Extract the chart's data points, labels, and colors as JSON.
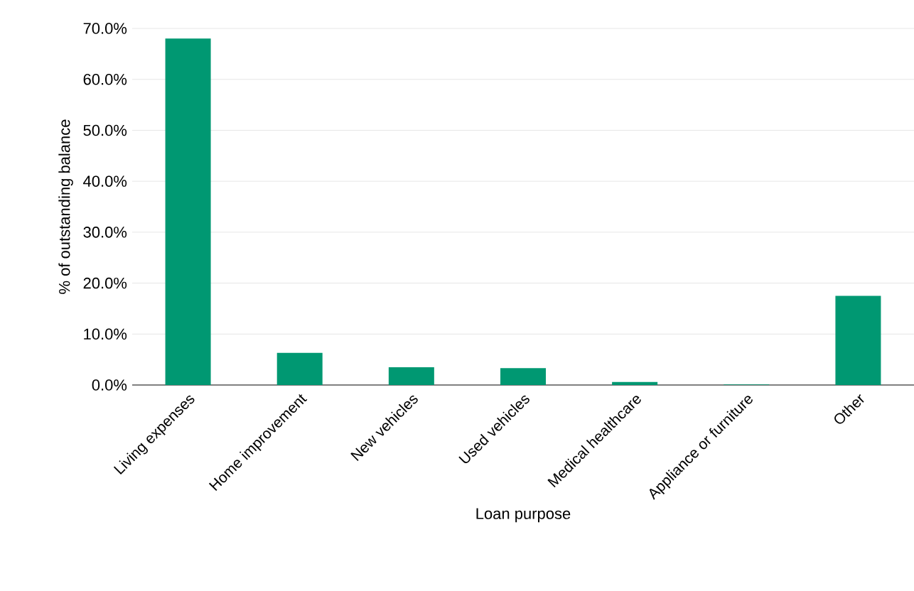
{
  "chart_data": {
    "type": "bar",
    "xlabel": "Loan purpose",
    "ylabel": "% of outstanding balance",
    "categories": [
      "Living expenses",
      "Home improvement",
      "New vehicles",
      "Used vehicles",
      "Medical healthcare",
      "Appliance or furniture",
      "Other"
    ],
    "values": [
      68.0,
      6.3,
      3.5,
      3.3,
      0.6,
      0.1,
      17.5
    ],
    "color": "#009872",
    "ylim": [
      0,
      70
    ],
    "yticks": [
      {
        "value": 0,
        "label": "0.0%"
      },
      {
        "value": 10,
        "label": "10.0%"
      },
      {
        "value": 20,
        "label": "20.0%"
      },
      {
        "value": 30,
        "label": "30.0%"
      },
      {
        "value": 40,
        "label": "40.0%"
      },
      {
        "value": 50,
        "label": "50.0%"
      },
      {
        "value": 60,
        "label": "60.0%"
      },
      {
        "value": 70,
        "label": "70.0%"
      }
    ],
    "grid": "y"
  }
}
